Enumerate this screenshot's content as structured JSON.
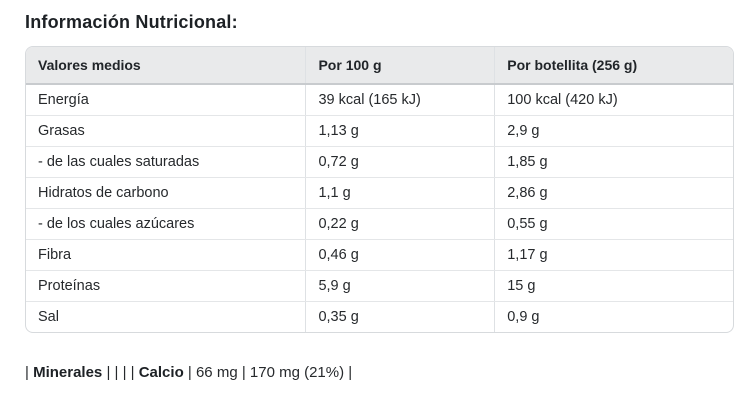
{
  "title": "Información Nutricional:",
  "table": {
    "columns": [
      "Valores medios",
      "Por 100 g",
      "Por botellita (256 g)"
    ],
    "rows": [
      [
        "Energía",
        "39 kcal (165 kJ)",
        "100 kcal (420 kJ)"
      ],
      [
        "Grasas",
        "1,13 g",
        "2,9 g"
      ],
      [
        "- de las cuales saturadas",
        "0,72 g",
        "1,85 g"
      ],
      [
        "Hidratos de carbono",
        "1,1 g",
        "2,86 g"
      ],
      [
        "- de los cuales azúcares",
        "0,22 g",
        "0,55 g"
      ],
      [
        "Fibra",
        "0,46 g",
        "1,17 g"
      ],
      [
        "Proteínas",
        "5,9 g",
        "15 g"
      ],
      [
        "Sal",
        "0,35 g",
        "0,9 g"
      ]
    ]
  },
  "footer": {
    "segments": [
      {
        "text": "| ",
        "bold": false
      },
      {
        "text": "Minerales",
        "bold": true
      },
      {
        "text": " | | | | ",
        "bold": false
      },
      {
        "text": "Calcio",
        "bold": true
      },
      {
        "text": " | 66 mg | 170 mg (21%) |",
        "bold": false
      }
    ]
  },
  "colors": {
    "header_background": "#e9eaeb",
    "table_border": "#d7dadd",
    "row_border": "#e4e6e8",
    "text": "#212529"
  }
}
